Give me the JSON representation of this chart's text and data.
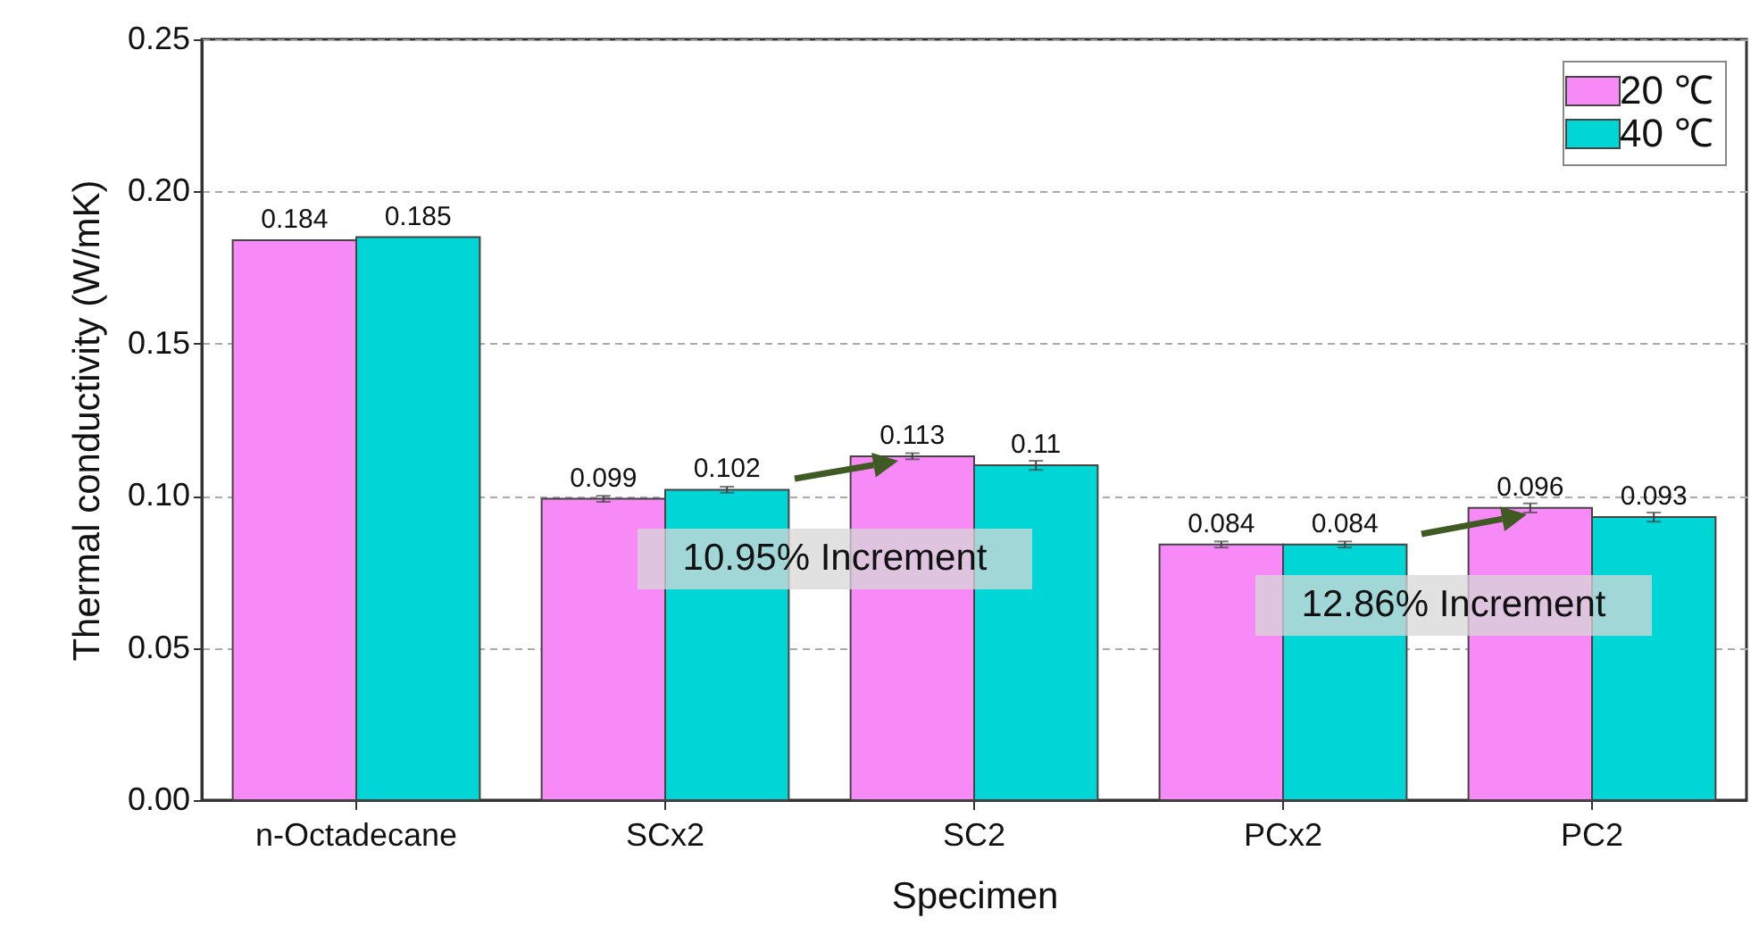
{
  "chart_data": {
    "type": "bar",
    "xlabel": "Specimen",
    "ylabel": "Thermal conductivity (W/mK)",
    "categories": [
      "n-Octadecane",
      "SCx2",
      "SC2",
      "PCx2",
      "PC2"
    ],
    "series": [
      {
        "name": "20 ℃",
        "color": "#f78af7",
        "values": [
          0.184,
          0.099,
          0.113,
          0.084,
          0.096
        ],
        "errors": [
          null,
          0.001,
          0.001,
          0.001,
          0.0015
        ]
      },
      {
        "name": "40 ℃",
        "color": "#00d6d6",
        "values": [
          0.185,
          0.102,
          0.11,
          0.084,
          0.093
        ],
        "errors": [
          null,
          0.001,
          0.0015,
          0.001,
          0.0015
        ]
      }
    ],
    "ylim": [
      0,
      0.25
    ],
    "yticks": [
      {
        "value": 0,
        "label": "0.00"
      },
      {
        "value": 0.05,
        "label": "0.05"
      },
      {
        "value": 0.1,
        "label": "0.10"
      },
      {
        "value": 0.15,
        "label": "0.15"
      },
      {
        "value": 0.2,
        "label": "0.20"
      },
      {
        "value": 0.25,
        "label": "0.25"
      }
    ],
    "grid": "y",
    "legend": "top right",
    "data_labels": true,
    "annotations": [
      "10.95% Increment",
      "12.86% Increment"
    ]
  }
}
